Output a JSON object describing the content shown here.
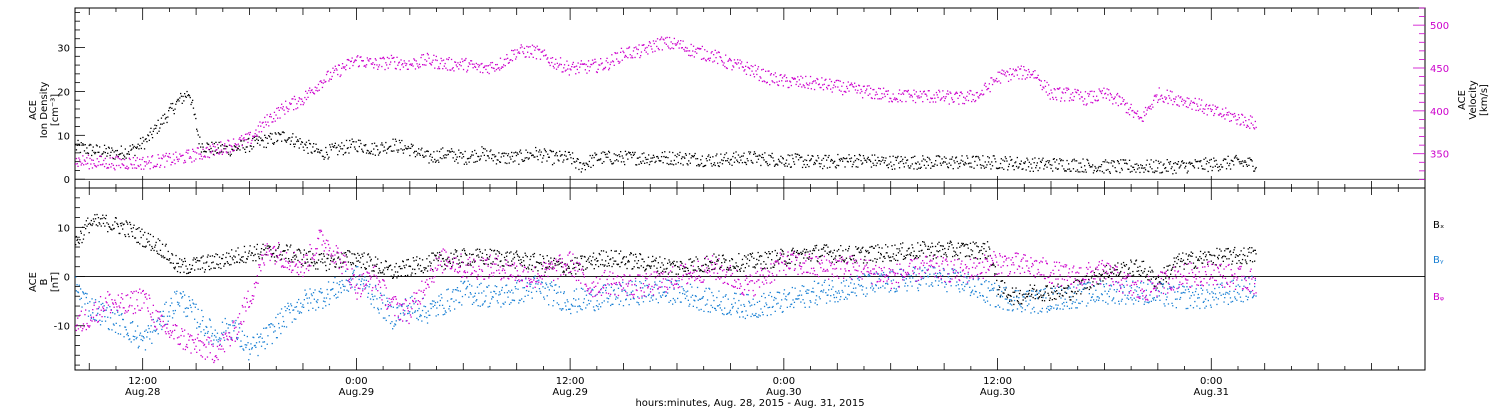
{
  "xlabel": "hours:minutes, Aug. 28, 2015 - Aug. 31, 2015",
  "x_ticks": [
    {
      "hour": 12,
      "time": "12:00",
      "date": "Aug.28"
    },
    {
      "hour": 24,
      "time": "0:00",
      "date": "Aug.29"
    },
    {
      "hour": 36,
      "time": "12:00",
      "date": "Aug.29"
    },
    {
      "hour": 48,
      "time": "0:00",
      "date": "Aug.30"
    },
    {
      "hour": 60,
      "time": "12:00",
      "date": "Aug.30"
    },
    {
      "hour": 72,
      "time": "0:00",
      "date": "Aug.31"
    }
  ],
  "colors": {
    "black": "#000000",
    "magenta": "#cc00cc",
    "blue": "#1a80d4"
  },
  "chart_data": [
    {
      "type": "scatter",
      "xlim_hours": [
        8.2,
        84
      ],
      "ylabel_left": [
        "ACE",
        "Ion Density",
        "[cm⁻³]"
      ],
      "ylabel_right": [
        "ACE",
        "Velocity",
        "[km/s]"
      ],
      "left_ticks": [
        "0",
        "10",
        "20",
        "30"
      ],
      "right_ticks": [
        "350",
        "400",
        "450",
        "500"
      ],
      "ylim_left": [
        -2,
        39
      ],
      "ylim_right": [
        310,
        520
      ],
      "series": [
        {
          "axis": "left",
          "color": "#000000",
          "x": [
            8.2,
            9.5,
            10.5,
            11.5,
            12.2,
            12.8,
            13.4,
            14,
            14.6,
            15.2,
            16,
            17,
            18,
            19,
            20,
            21,
            22,
            23,
            24,
            25,
            26,
            27,
            28,
            29,
            30,
            31,
            32,
            33,
            34,
            35,
            36,
            36.5,
            37.5,
            38.5,
            40,
            42,
            44,
            46,
            48,
            50,
            52,
            54,
            56,
            58,
            60,
            62,
            64,
            66,
            68,
            70,
            72,
            73.5,
            74.5
          ],
          "y": [
            7.5,
            6.5,
            6,
            7,
            9,
            12,
            15,
            18,
            20,
            8,
            7,
            7,
            8,
            9,
            10,
            8,
            6,
            7,
            8,
            7,
            8,
            7,
            5,
            6,
            5,
            6,
            5,
            5,
            6,
            5,
            5,
            3,
            5,
            5,
            5,
            5,
            4.5,
            5,
            4.5,
            4,
            4.5,
            4,
            4,
            4,
            4,
            3.5,
            3.5,
            3,
            3,
            3,
            3.5,
            4,
            3.5
          ],
          "scatter": 1.6
        },
        {
          "axis": "right",
          "color": "#cc00cc",
          "x": [
            8.2,
            10,
            12,
            14,
            16,
            18,
            19,
            20,
            21,
            22,
            23,
            24,
            25,
            26,
            27,
            28,
            29,
            30,
            31,
            32,
            33,
            34,
            35,
            36,
            37,
            38,
            39,
            40,
            41,
            42,
            43,
            44,
            45,
            46,
            47,
            48,
            50,
            52,
            54,
            56,
            58,
            59,
            60,
            61,
            62,
            63,
            64,
            65,
            66,
            67,
            68,
            69,
            70,
            71,
            72,
            73,
            74.5
          ],
          "y": [
            342,
            340,
            340,
            345,
            355,
            368,
            390,
            405,
            415,
            435,
            448,
            460,
            455,
            458,
            455,
            460,
            455,
            455,
            450,
            455,
            470,
            470,
            458,
            450,
            452,
            455,
            468,
            470,
            480,
            478,
            470,
            465,
            455,
            450,
            440,
            435,
            432,
            425,
            418,
            418,
            415,
            420,
            440,
            445,
            445,
            420,
            420,
            415,
            420,
            410,
            390,
            420,
            415,
            410,
            400,
            395,
            385
          ],
          "scatter": 8
        }
      ]
    },
    {
      "type": "scatter",
      "xlim_hours": [
        8.2,
        84
      ],
      "ylabel_left": [
        "ACE",
        "B",
        "[nT]"
      ],
      "left_ticks": [
        "-10",
        "0",
        "10"
      ],
      "ylim_left": [
        -19,
        18
      ],
      "legend": [
        "Bₓ",
        "Bᵧ",
        "Bᵩ"
      ],
      "legend_pos": "right",
      "series": [
        {
          "color": "#000000",
          "x": [
            8.2,
            9,
            10,
            11,
            12,
            13,
            14,
            16,
            18,
            20,
            22,
            24,
            26,
            28,
            30,
            32,
            34,
            36,
            38,
            40,
            42,
            44,
            46,
            48,
            50,
            52,
            54,
            56,
            58,
            59.5,
            60,
            61,
            62,
            64,
            66,
            68,
            69,
            70,
            72,
            74.5
          ],
          "y": [
            7,
            11,
            11,
            10,
            8,
            6,
            2,
            3,
            5,
            5,
            3,
            4,
            1,
            3,
            4,
            4,
            3,
            2,
            4,
            3,
            2,
            3,
            3,
            4,
            5,
            4.5,
            5,
            5.5,
            5.5,
            5.5,
            -2,
            -4,
            -3,
            -3,
            1,
            2,
            -1,
            3,
            4,
            4.5
          ],
          "scatter": 1.8
        },
        {
          "color": "#1a80d4",
          "x": [
            8.2,
            9,
            10,
            11,
            12,
            13,
            14,
            15,
            16,
            17,
            18,
            19,
            20,
            21,
            22,
            23,
            24,
            25,
            26,
            27,
            28,
            30,
            32,
            34,
            36,
            38,
            40,
            42,
            44,
            46,
            48,
            50,
            52,
            54,
            56,
            58,
            60,
            62,
            64,
            66,
            68,
            70,
            72,
            74.5
          ],
          "y": [
            -2,
            -6,
            -8,
            -10,
            -13,
            -9,
            -4,
            -8,
            -12,
            -10,
            -15,
            -12,
            -8,
            -5,
            -4,
            -2,
            0,
            -4,
            -8,
            -6,
            -7,
            -3,
            -4,
            -2,
            -5,
            -4,
            -3,
            -3,
            -5,
            -6,
            -5,
            -3,
            -2,
            -1,
            0,
            -1,
            -4,
            -5,
            -4,
            -3,
            -3,
            -4,
            -4,
            -2
          ],
          "scatter": 2.5
        },
        {
          "color": "#cc00cc",
          "x": [
            8.2,
            9,
            10,
            11,
            12,
            13,
            14,
            15,
            16,
            17,
            18,
            19,
            20,
            21,
            22,
            23,
            24,
            25,
            26,
            27,
            28,
            29,
            30,
            32,
            34,
            36,
            37,
            38,
            40,
            42,
            44,
            46,
            48,
            50,
            52,
            54,
            56,
            58,
            60,
            62,
            64,
            66,
            68,
            70,
            72,
            74.5
          ],
          "y": [
            -10,
            -8,
            -5,
            -6,
            -4,
            -10,
            -12,
            -14,
            -15,
            -12,
            -4,
            6,
            4,
            2,
            8,
            4,
            -2,
            0,
            -6,
            -7,
            0,
            4,
            2,
            2,
            0,
            3,
            -2,
            -1,
            -2,
            0,
            2,
            -2,
            3,
            2,
            2,
            0,
            2,
            1,
            3,
            2,
            0,
            1,
            -3,
            0,
            1,
            -1
          ],
          "scatter": 2.5
        }
      ]
    }
  ]
}
